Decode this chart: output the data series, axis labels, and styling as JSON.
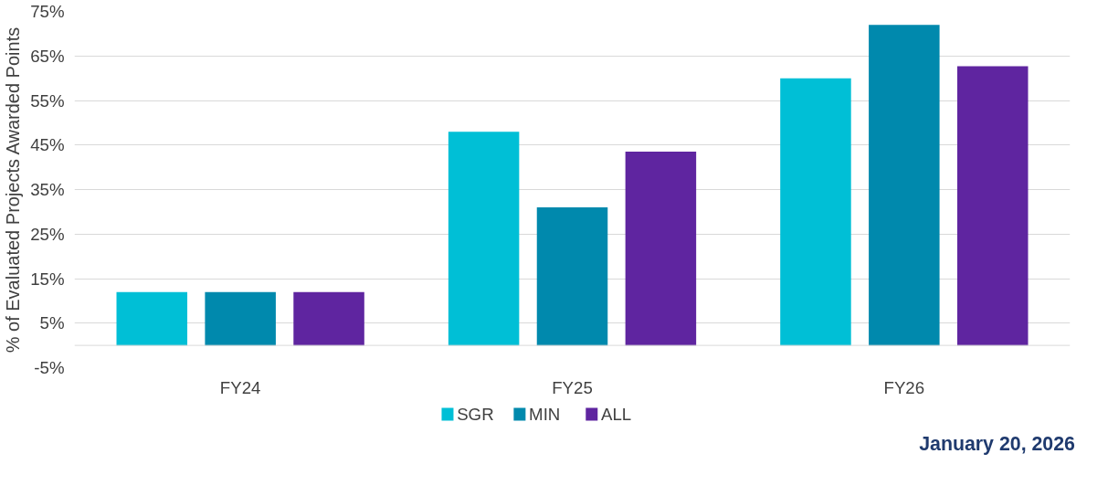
{
  "chart_data": {
    "type": "bar",
    "ylabel": "% of Evaluated Projects Awarded Points",
    "categories": [
      "FY24",
      "FY25",
      "FY26"
    ],
    "series": [
      {
        "name": "SGR",
        "color": "#00bfd6",
        "values": [
          12,
          48,
          60
        ]
      },
      {
        "name": "MIN",
        "color": "#0089ad",
        "values": [
          12,
          31,
          72
        ]
      },
      {
        "name": "ALL",
        "color": "#5f25a0",
        "values": [
          12,
          43.5,
          62.7
        ]
      }
    ],
    "ylim": [
      -5,
      75
    ],
    "yticks": [
      {
        "value": -5,
        "label": "-5%"
      },
      {
        "value": 5,
        "label": "5%"
      },
      {
        "value": 15,
        "label": "15%"
      },
      {
        "value": 25,
        "label": "25%"
      },
      {
        "value": 35,
        "label": "35%"
      },
      {
        "value": 45,
        "label": "45%"
      },
      {
        "value": 55,
        "label": "55%"
      },
      {
        "value": 65,
        "label": "65%"
      },
      {
        "value": 75,
        "label": "75%"
      }
    ],
    "grid": "y",
    "legend": "bottom",
    "annotations": [
      "January 20, 2026"
    ]
  }
}
